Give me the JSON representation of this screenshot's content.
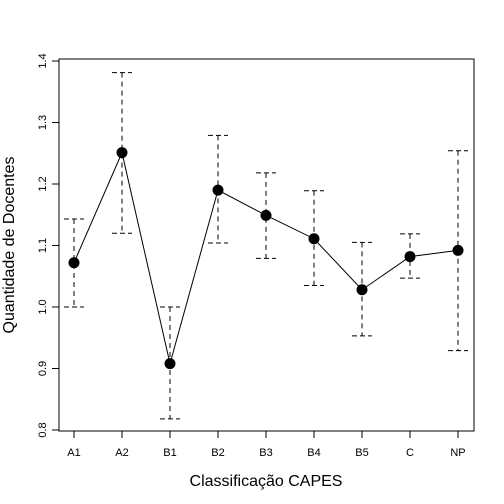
{
  "chart_data": {
    "type": "line",
    "title": "",
    "xlabel": "Classificação CAPES",
    "ylabel": "Quantidade de Docentes",
    "categories": [
      "A1",
      "A2",
      "B1",
      "B2",
      "B3",
      "B4",
      "B5",
      "C",
      "NP"
    ],
    "values": [
      1.072,
      1.251,
      0.908,
      1.19,
      1.149,
      1.111,
      1.028,
      1.082,
      1.092
    ],
    "error_lower": [
      1.0,
      1.12,
      0.818,
      1.104,
      1.079,
      1.035,
      0.953,
      1.047,
      0.929
    ],
    "error_upper": [
      1.143,
      1.381,
      1.0,
      1.279,
      1.218,
      1.189,
      1.105,
      1.119,
      1.254
    ],
    "ylim": [
      0.8,
      1.4
    ],
    "yticks": [
      "0.8",
      "0.9",
      "1.0",
      "1.1",
      "1.2",
      "1.3",
      "1.4"
    ],
    "grid": false,
    "colors": {
      "line": "#000000",
      "marker": "#000000",
      "axis": "#000000"
    }
  }
}
